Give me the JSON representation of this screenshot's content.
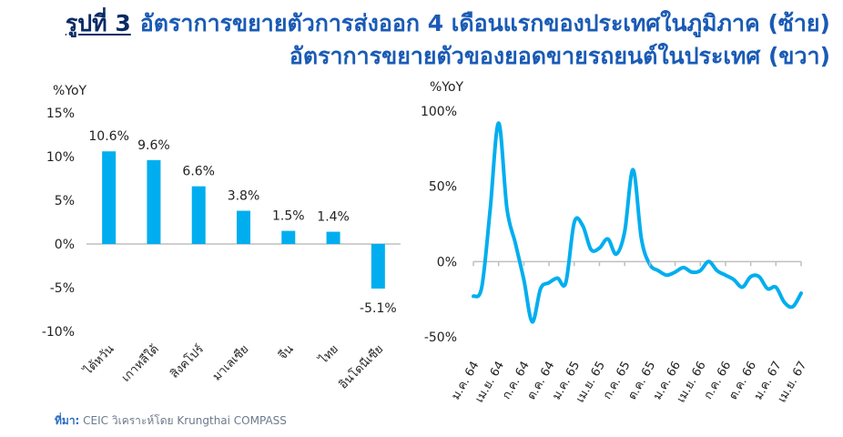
{
  "title": {
    "label": "รูปที่ 3",
    "line1": "อัตราการขยายตัวการส่งออก 4 เดือนแรกของประเทศในภูมิภาค (ซ้าย)",
    "line2": "อัตราการขยายตัวของยอดขายรถยนต์ในประเทศ (ขวา)"
  },
  "source": {
    "label": "ที่มา:",
    "text": " CEIC วิเคราะห์โดย Krungthai COMPASS"
  },
  "colors": {
    "series": "#00aeef",
    "title": "#1a5bb5",
    "title_label": "#0a2a66",
    "axis": "#bfbfbf",
    "text": "#222222"
  },
  "chart_data": [
    {
      "type": "bar",
      "ylabel": "%YoY",
      "categories": [
        "ไต้หวัน",
        "เกาหลีใต้",
        "สิงคโปร์",
        "มาเลเซีย",
        "จีน",
        "ไทย",
        "อินโดนีเซีย"
      ],
      "values": [
        10.6,
        9.6,
        6.6,
        3.8,
        1.5,
        1.4,
        -5.1
      ],
      "data_labels": [
        "10.6%",
        "9.6%",
        "6.6%",
        "3.8%",
        "1.5%",
        "1.4%",
        "-5.1%"
      ],
      "yticks": [
        "15%",
        "10%",
        "5%",
        "0%",
        "-5%",
        "-10%"
      ],
      "ylim": [
        -10,
        15
      ],
      "grid": false
    },
    {
      "type": "line",
      "ylabel": "%YoY",
      "x": [
        "ม.ค. 64",
        "ก.พ. 64",
        "มี.ค. 64",
        "เม.ย. 64",
        "พ.ค. 64",
        "มิ.ย. 64",
        "ก.ค. 64",
        "ส.ค. 64",
        "ก.ย. 64",
        "ต.ค. 64",
        "พ.ย. 64",
        "ธ.ค. 64",
        "ม.ค. 65",
        "ก.พ. 65",
        "มี.ค. 65",
        "เม.ย. 65",
        "พ.ค. 65",
        "มิ.ย. 65",
        "ก.ค. 65",
        "ส.ค. 65",
        "ก.ย. 65",
        "ต.ค. 65",
        "พ.ย. 65",
        "ธ.ค. 65",
        "ม.ค. 66",
        "ก.พ. 66",
        "มี.ค. 66",
        "เม.ย. 66",
        "พ.ค. 66",
        "มิ.ย. 66",
        "ก.ค. 66",
        "ส.ค. 66",
        "ก.ย. 66",
        "ต.ค. 66",
        "พ.ย. 66",
        "ธ.ค. 66",
        "ม.ค. 67",
        "ก.พ. 67",
        "มี.ค. 67",
        "เม.ย. 67"
      ],
      "xticks": [
        "ม.ค. 64",
        "เม.ย. 64",
        "ก.ค. 64",
        "ต.ค. 64",
        "ม.ค. 65",
        "เม.ย. 65",
        "ก.ค. 65",
        "ต.ค. 65",
        "ม.ค. 66",
        "เม.ย. 66",
        "ก.ค. 66",
        "ต.ค. 66",
        "ม.ค. 67",
        "เม.ย. 67"
      ],
      "values": [
        -23,
        -17,
        35,
        92,
        35,
        12,
        -12,
        -40,
        -18,
        -14,
        -11,
        -14,
        26,
        24,
        8,
        9,
        15,
        5,
        20,
        61,
        15,
        -2,
        -6,
        -9,
        -7,
        -4,
        -7,
        -6,
        0,
        -6,
        -9,
        -12,
        -17,
        -10,
        -10,
        -18,
        -17,
        -27,
        -30,
        -21
      ],
      "yticks": [
        "100%",
        "50%",
        "0%",
        "-50%"
      ],
      "ylim": [
        -50,
        100
      ],
      "grid": false
    }
  ]
}
